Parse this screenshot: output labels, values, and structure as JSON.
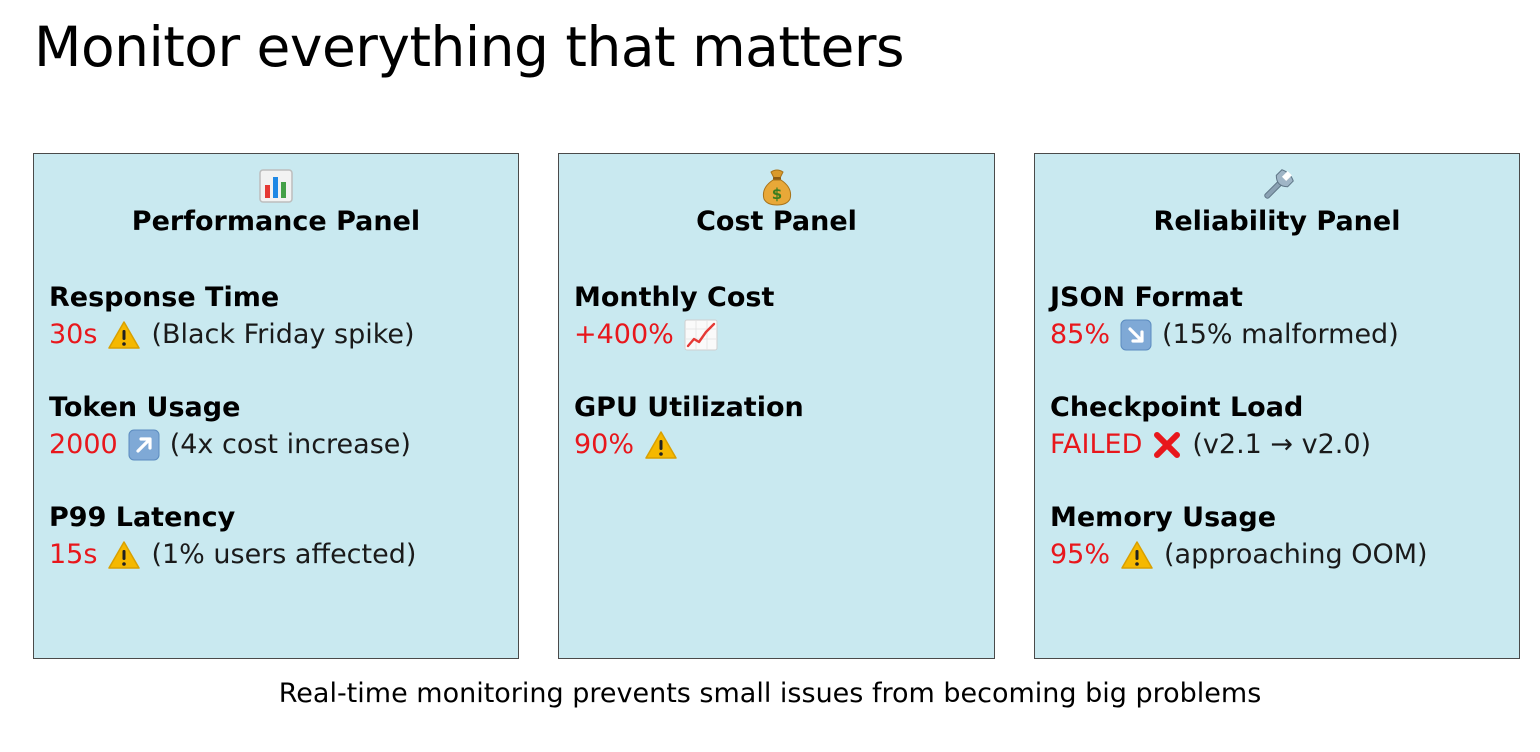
{
  "title": "Monitor everything that matters",
  "panels": {
    "performance": {
      "icon": "bar-chart-icon",
      "title": "Performance Panel",
      "metrics": [
        {
          "name": "Response Time",
          "value": "30s",
          "icon": "warning-icon",
          "note": "(Black Friday spike)"
        },
        {
          "name": "Token Usage",
          "value": "2000",
          "icon": "arrow-up-right-icon",
          "note": "(4x cost increase)"
        },
        {
          "name": "P99 Latency",
          "value": "15s",
          "icon": "warning-icon",
          "note": "(1% users affected)"
        }
      ]
    },
    "cost": {
      "icon": "money-bag-icon",
      "title": "Cost Panel",
      "metrics": [
        {
          "name": "Monthly Cost",
          "value": "+400%",
          "icon": "chart-increasing-icon",
          "note": ""
        },
        {
          "name": "GPU Utilization",
          "value": "90%",
          "icon": "warning-icon",
          "note": ""
        }
      ]
    },
    "reliability": {
      "icon": "wrench-icon",
      "title": "Reliability Panel",
      "metrics": [
        {
          "name": "JSON Format",
          "value": "85%",
          "icon": "arrow-down-right-icon",
          "note": "(15% malformed)"
        },
        {
          "name": "Checkpoint Load",
          "value": "FAILED",
          "icon": "cross-mark-icon",
          "note": "(v2.1 → v2.0)"
        },
        {
          "name": "Memory Usage",
          "value": "95%",
          "icon": "warning-icon",
          "note": "(approaching OOM)"
        }
      ]
    }
  },
  "footer": "Real-time monitoring prevents small issues from becoming big problems",
  "colors": {
    "panel_bg": "#c9e9f0",
    "panel_border": "#4a4a4a",
    "alert_value": "#e8171c"
  }
}
